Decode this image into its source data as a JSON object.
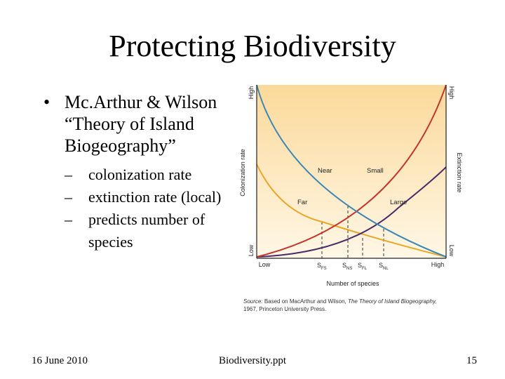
{
  "slide": {
    "title": "Protecting Biodiversity",
    "bullet_main": "Mc.Arthur & Wilson “Theory of Island Biogeography”",
    "sub_bullets": [
      "colonization rate",
      "extinction rate (local)",
      "predicts number of species"
    ]
  },
  "footer": {
    "date": "16 June 2010",
    "file": "Biodiversity.ppt",
    "page": "15"
  },
  "figure": {
    "left_axis_label": "Colonization rate",
    "right_axis_label": "Extinction rate",
    "x_axis_label": "Number of species",
    "left_high": "High",
    "left_low": "Low",
    "right_high": "High",
    "right_low": "Low",
    "x_low": "Low",
    "x_high": "High",
    "curve_labels": {
      "near": "Near",
      "far": "Far",
      "small": "Small",
      "large": "Large"
    },
    "ticks": [
      {
        "main": "S",
        "sub": "FS"
      },
      {
        "main": "S",
        "sub": "NS"
      },
      {
        "main": "S",
        "sub": "FL"
      },
      {
        "main": "S",
        "sub": "NL"
      }
    ],
    "source_label": "Source:",
    "source_pre": "Based on MacArthur and Wilson, ",
    "source_italic": "The Theory of Island Biogeography,",
    "source_post": "1967, Princeton University Press.",
    "colors": {
      "near_colonization": "#3c87b5",
      "far_colonization": "#eaa524",
      "small_extinction": "#c4352c",
      "large_extinction": "#4a2a68",
      "panel_top": "#fbd99a",
      "panel_bottom": "#fff7e6"
    }
  }
}
